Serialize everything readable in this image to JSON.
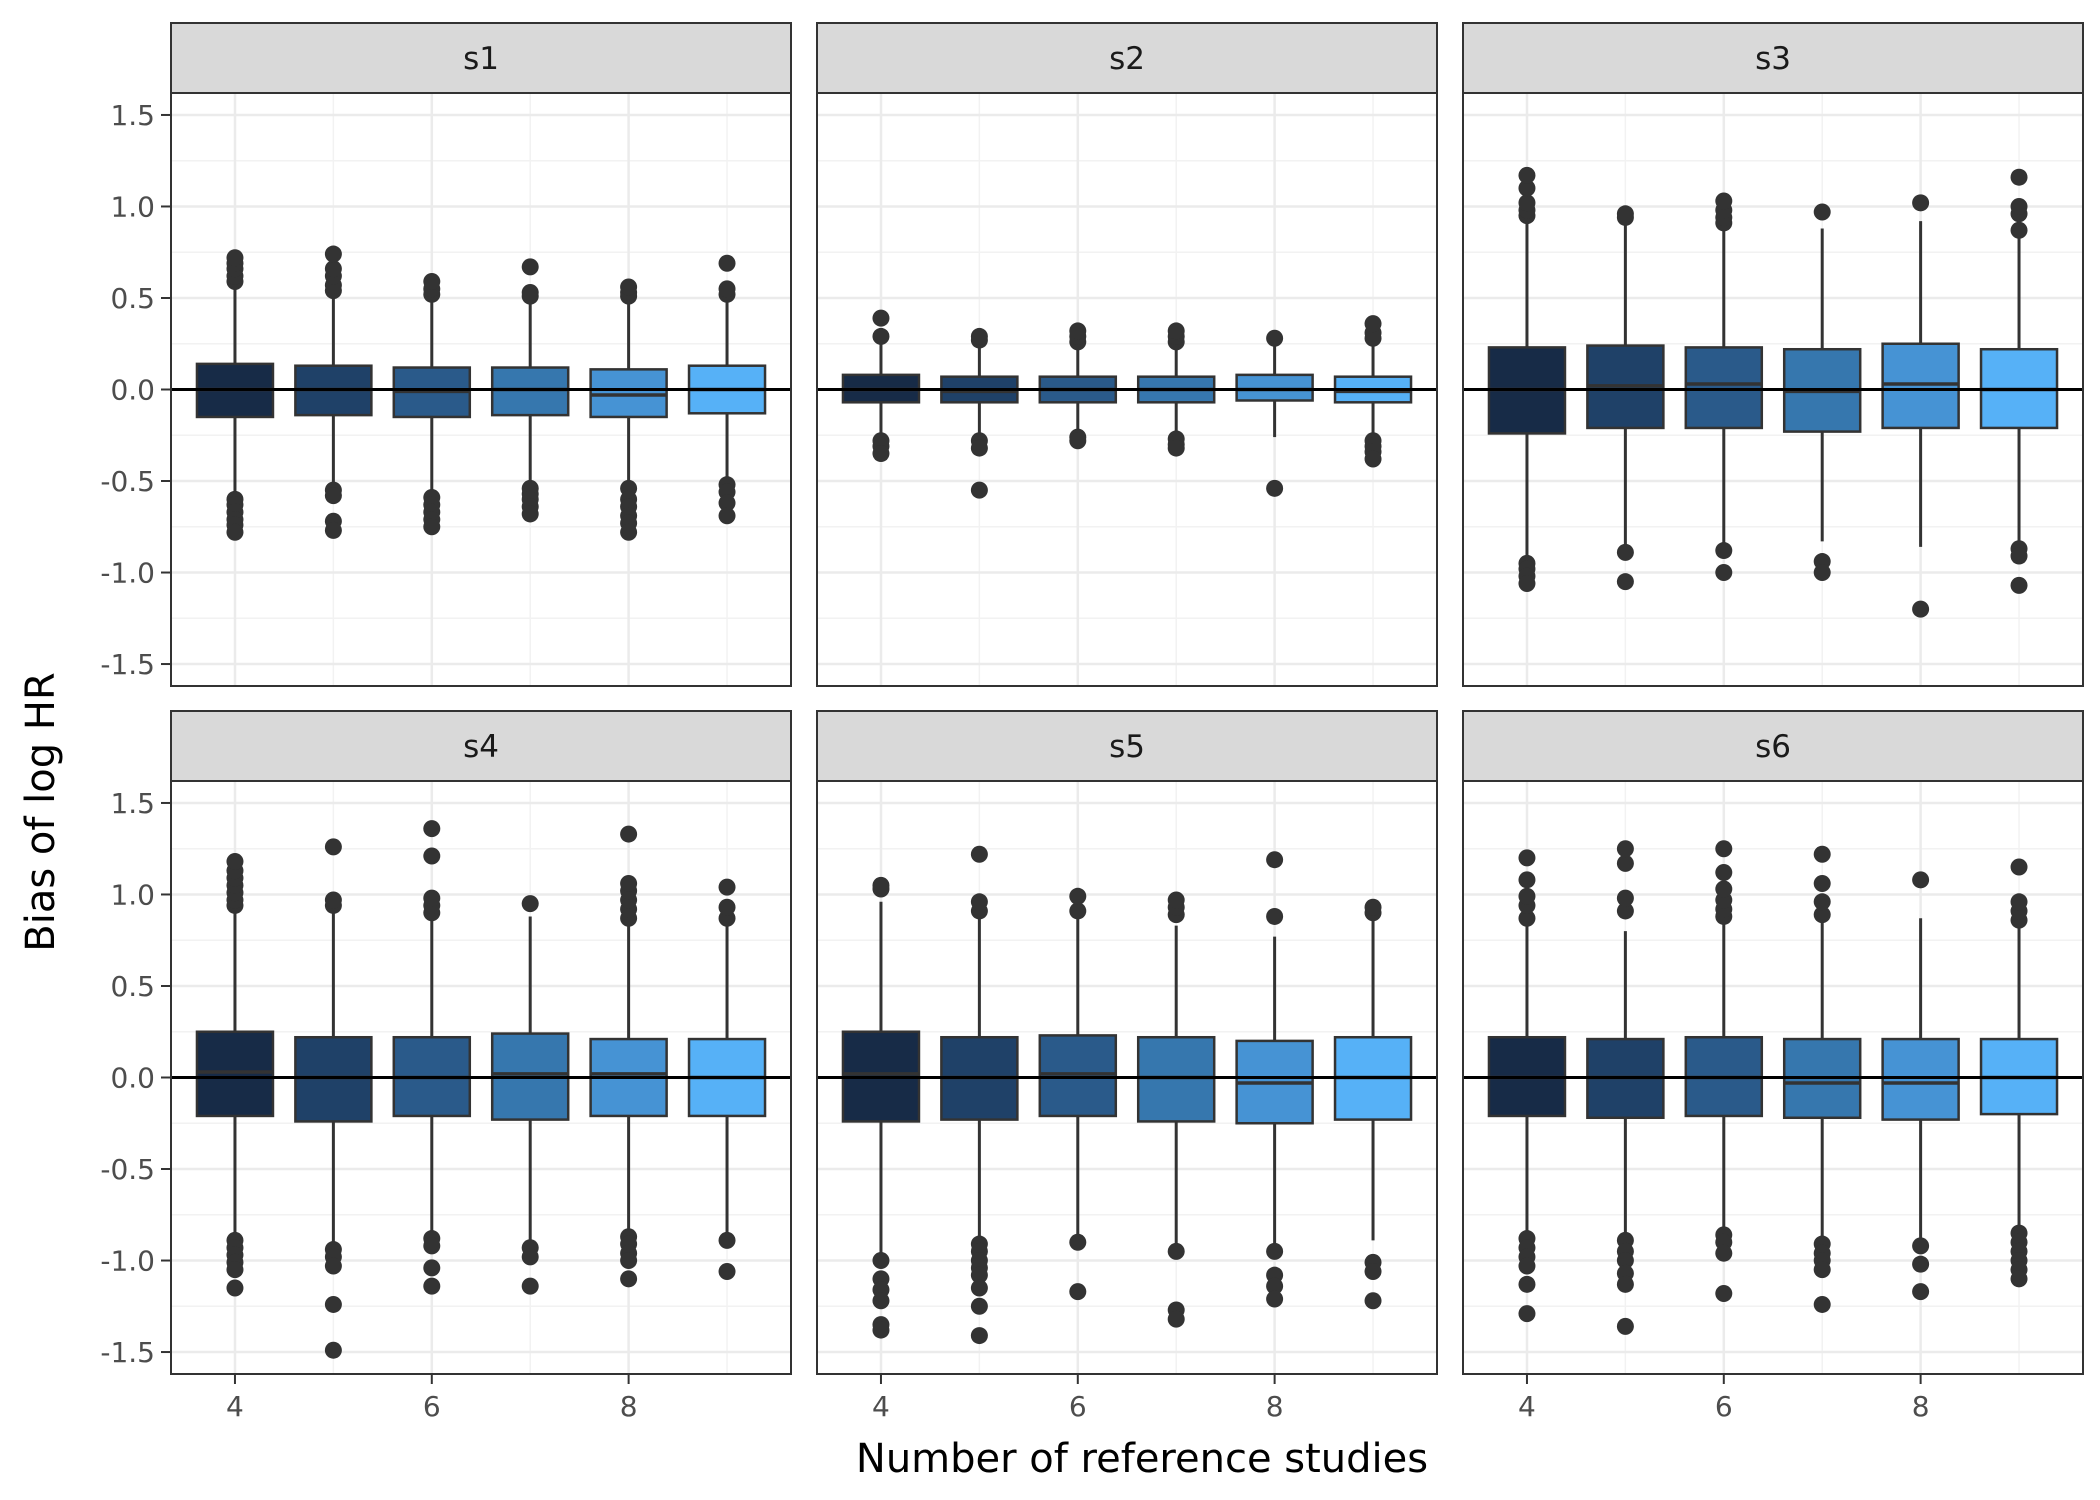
{
  "chart_data": {
    "type": "boxplot",
    "ylabel": "Bias of log HR",
    "xlabel": "Number of reference studies",
    "ylim": [
      -1.62,
      1.62
    ],
    "xlim": [
      3.35,
      9.65
    ],
    "yticks": [
      -1.5,
      -1.0,
      -0.5,
      0.0,
      0.5,
      1.0,
      1.5
    ],
    "ytick_labels": [
      "-1.5",
      "-1.0",
      "-0.5",
      "0.0",
      "0.5",
      "1.0",
      "1.5"
    ],
    "xticks": [
      4,
      6,
      8
    ],
    "xtick_labels": [
      "4",
      "6",
      "8"
    ],
    "hline": 0,
    "grid": true,
    "fill_colors": [
      "#172b47",
      "#1f4168",
      "#2a5a8a",
      "#3677ae",
      "#4693d4",
      "#56b1f7"
    ],
    "facets": [
      {
        "name": "s1",
        "boxes": [
          {
            "x": 4,
            "q1": -0.15,
            "median": 0.0,
            "q3": 0.14,
            "whisker_low": -0.57,
            "whisker_high": 0.57,
            "outliers": [
              0.59,
              0.62,
              0.66,
              0.69,
              0.72,
              -0.6,
              -0.63,
              -0.67,
              -0.71,
              -0.74,
              -0.78
            ]
          },
          {
            "x": 5,
            "q1": -0.14,
            "median": 0.0,
            "q3": 0.13,
            "whisker_low": -0.53,
            "whisker_high": 0.52,
            "outliers": [
              0.54,
              0.57,
              0.62,
              0.66,
              0.74,
              -0.55,
              -0.58,
              -0.72,
              -0.77
            ]
          },
          {
            "x": 6,
            "q1": -0.15,
            "median": -0.01,
            "q3": 0.12,
            "whisker_low": -0.56,
            "whisker_high": 0.5,
            "outliers": [
              0.52,
              0.55,
              0.59,
              -0.59,
              -0.63,
              -0.67,
              -0.71,
              -0.75
            ]
          },
          {
            "x": 7,
            "q1": -0.14,
            "median": 0.0,
            "q3": 0.12,
            "whisker_low": -0.52,
            "whisker_high": 0.5,
            "outliers": [
              0.51,
              0.53,
              0.67,
              -0.54,
              -0.57,
              -0.6,
              -0.64,
              -0.68
            ]
          },
          {
            "x": 8,
            "q1": -0.15,
            "median": -0.03,
            "q3": 0.11,
            "whisker_low": -0.52,
            "whisker_high": 0.5,
            "outliers": [
              0.51,
              0.53,
              0.56,
              -0.54,
              -0.6,
              -0.64,
              -0.69,
              -0.73,
              -0.78
            ]
          },
          {
            "x": 9,
            "q1": -0.13,
            "median": 0.0,
            "q3": 0.13,
            "whisker_low": -0.5,
            "whisker_high": 0.5,
            "outliers": [
              0.52,
              0.55,
              0.69,
              -0.52,
              -0.56,
              -0.62,
              -0.69
            ]
          }
        ]
      },
      {
        "name": "s2",
        "boxes": [
          {
            "x": 4,
            "q1": -0.07,
            "median": 0.0,
            "q3": 0.08,
            "whisker_low": -0.27,
            "whisker_high": 0.27,
            "outliers": [
              0.29,
              0.39,
              -0.28,
              -0.31,
              -0.35
            ]
          },
          {
            "x": 5,
            "q1": -0.07,
            "median": -0.01,
            "q3": 0.07,
            "whisker_low": -0.26,
            "whisker_high": 0.26,
            "outliers": [
              0.27,
              0.29,
              -0.28,
              -0.32,
              -0.55
            ]
          },
          {
            "x": 6,
            "q1": -0.07,
            "median": 0.0,
            "q3": 0.07,
            "whisker_low": -0.25,
            "whisker_high": 0.25,
            "outliers": [
              0.26,
              0.29,
              0.32,
              -0.26,
              -0.28
            ]
          },
          {
            "x": 7,
            "q1": -0.07,
            "median": 0.0,
            "q3": 0.07,
            "whisker_low": -0.25,
            "whisker_high": 0.25,
            "outliers": [
              0.26,
              0.29,
              0.32,
              -0.27,
              -0.3,
              -0.32
            ]
          },
          {
            "x": 8,
            "q1": -0.06,
            "median": 0.0,
            "q3": 0.08,
            "whisker_low": -0.26,
            "whisker_high": 0.26,
            "outliers": [
              0.28,
              -0.54
            ]
          },
          {
            "x": 9,
            "q1": -0.07,
            "median": -0.01,
            "q3": 0.07,
            "whisker_low": -0.26,
            "whisker_high": 0.26,
            "outliers": [
              0.28,
              0.31,
              0.36,
              -0.28,
              -0.31,
              -0.34,
              -0.38
            ]
          }
        ]
      },
      {
        "name": "s3",
        "boxes": [
          {
            "x": 4,
            "q1": -0.24,
            "median": 0.0,
            "q3": 0.23,
            "whisker_low": -0.92,
            "whisker_high": 0.92,
            "outliers": [
              0.95,
              0.98,
              1.02,
              1.1,
              1.17,
              -0.95,
              -0.98,
              -1.02,
              -1.06
            ]
          },
          {
            "x": 5,
            "q1": -0.21,
            "median": 0.02,
            "q3": 0.24,
            "whisker_low": -0.87,
            "whisker_high": 0.92,
            "outliers": [
              0.94,
              0.96,
              -0.89,
              -1.05
            ]
          },
          {
            "x": 6,
            "q1": -0.21,
            "median": 0.03,
            "q3": 0.23,
            "whisker_low": -0.87,
            "whisker_high": 0.9,
            "outliers": [
              0.91,
              0.94,
              0.98,
              1.03,
              -0.88,
              -1.0
            ]
          },
          {
            "x": 7,
            "q1": -0.23,
            "median": -0.01,
            "q3": 0.22,
            "whisker_low": -0.83,
            "whisker_high": 0.88,
            "outliers": [
              0.97,
              -0.94,
              -1.0
            ]
          },
          {
            "x": 8,
            "q1": -0.21,
            "median": 0.03,
            "q3": 0.25,
            "whisker_low": -0.86,
            "whisker_high": 0.92,
            "outliers": [
              1.02,
              -1.2
            ]
          },
          {
            "x": 9,
            "q1": -0.21,
            "median": 0.0,
            "q3": 0.22,
            "whisker_low": -0.85,
            "whisker_high": 0.86,
            "outliers": [
              0.87,
              0.96,
              1.0,
              1.16,
              -0.87,
              -0.91,
              -1.07
            ]
          }
        ]
      },
      {
        "name": "s4",
        "boxes": [
          {
            "x": 4,
            "q1": -0.21,
            "median": 0.03,
            "q3": 0.25,
            "whisker_low": -0.88,
            "whisker_high": 0.92,
            "outliers": [
              0.94,
              0.97,
              1.01,
              1.05,
              1.09,
              1.13,
              1.18,
              -0.89,
              -0.93,
              -0.97,
              -1.01,
              -1.05,
              -1.15
            ]
          },
          {
            "x": 5,
            "q1": -0.24,
            "median": 0.0,
            "q3": 0.22,
            "whisker_low": -0.92,
            "whisker_high": 0.92,
            "outliers": [
              0.94,
              0.97,
              1.26,
              -0.94,
              -0.98,
              -1.03,
              -1.24,
              -1.49
            ]
          },
          {
            "x": 6,
            "q1": -0.21,
            "median": 0.0,
            "q3": 0.22,
            "whisker_low": -0.86,
            "whisker_high": 0.88,
            "outliers": [
              0.9,
              0.94,
              0.98,
              1.21,
              1.36,
              -0.88,
              -0.92,
              -1.04,
              -1.14
            ]
          },
          {
            "x": 7,
            "q1": -0.23,
            "median": 0.02,
            "q3": 0.24,
            "whisker_low": -0.92,
            "whisker_high": 0.88,
            "outliers": [
              0.95,
              -0.93,
              -0.98,
              -1.14
            ]
          },
          {
            "x": 8,
            "q1": -0.21,
            "median": 0.02,
            "q3": 0.21,
            "whisker_low": -0.85,
            "whisker_high": 0.85,
            "outliers": [
              0.87,
              0.92,
              0.97,
              1.02,
              1.06,
              1.33,
              -0.87,
              -0.91,
              -0.96,
              -1.0,
              -1.1
            ]
          },
          {
            "x": 9,
            "q1": -0.21,
            "median": 0.0,
            "q3": 0.21,
            "whisker_low": -0.89,
            "whisker_high": 0.85,
            "outliers": [
              0.87,
              0.93,
              1.04,
              -0.89,
              -1.06
            ]
          }
        ]
      },
      {
        "name": "s5",
        "boxes": [
          {
            "x": 4,
            "q1": -0.24,
            "median": 0.02,
            "q3": 0.25,
            "whisker_low": -0.96,
            "whisker_high": 0.96,
            "outliers": [
              1.03,
              1.05,
              -1.0,
              -1.1,
              -1.16,
              -1.22,
              -1.35,
              -1.38
            ]
          },
          {
            "x": 5,
            "q1": -0.23,
            "median": 0.0,
            "q3": 0.22,
            "whisker_low": -0.89,
            "whisker_high": 0.88,
            "outliers": [
              0.91,
              0.96,
              1.22,
              -0.91,
              -0.95,
              -1.0,
              -1.04,
              -1.08,
              -1.15,
              -1.25,
              -1.41
            ]
          },
          {
            "x": 6,
            "q1": -0.21,
            "median": 0.02,
            "q3": 0.23,
            "whisker_low": -0.88,
            "whisker_high": 0.88,
            "outliers": [
              0.91,
              0.99,
              -0.9,
              -1.17
            ]
          },
          {
            "x": 7,
            "q1": -0.24,
            "median": 0.0,
            "q3": 0.22,
            "whisker_low": -0.92,
            "whisker_high": 0.83,
            "outliers": [
              0.89,
              0.93,
              0.97,
              -0.95,
              -1.27,
              -1.32
            ]
          },
          {
            "x": 8,
            "q1": -0.25,
            "median": -0.03,
            "q3": 0.2,
            "whisker_low": -0.92,
            "whisker_high": 0.77,
            "outliers": [
              0.88,
              1.19,
              -0.95,
              -1.08,
              -1.14,
              -1.21
            ]
          },
          {
            "x": 9,
            "q1": -0.23,
            "median": 0.0,
            "q3": 0.22,
            "whisker_low": -0.89,
            "whisker_high": 0.88,
            "outliers": [
              0.9,
              0.93,
              -1.01,
              -1.06,
              -1.22
            ]
          }
        ]
      },
      {
        "name": "s6",
        "boxes": [
          {
            "x": 4,
            "q1": -0.21,
            "median": 0.0,
            "q3": 0.22,
            "whisker_low": -0.86,
            "whisker_high": 0.86,
            "outliers": [
              0.87,
              0.94,
              0.99,
              1.08,
              1.2,
              -0.88,
              -0.93,
              -0.98,
              -1.03,
              -1.13,
              -1.29
            ]
          },
          {
            "x": 5,
            "q1": -0.22,
            "median": 0.0,
            "q3": 0.21,
            "whisker_low": -0.87,
            "whisker_high": 0.8,
            "outliers": [
              0.91,
              0.98,
              1.17,
              1.25,
              -0.89,
              -0.95,
              -1.0,
              -1.07,
              -1.13,
              -1.36
            ]
          },
          {
            "x": 6,
            "q1": -0.21,
            "median": 0.0,
            "q3": 0.22,
            "whisker_low": -0.85,
            "whisker_high": 0.86,
            "outliers": [
              0.88,
              0.92,
              0.97,
              1.03,
              1.12,
              1.25,
              -0.86,
              -0.9,
              -0.96,
              -1.18
            ]
          },
          {
            "x": 7,
            "q1": -0.22,
            "median": -0.03,
            "q3": 0.21,
            "whisker_low": -0.89,
            "whisker_high": 0.86,
            "outliers": [
              0.89,
              0.96,
              1.06,
              1.22,
              -0.91,
              -0.96,
              -1.0,
              -1.05,
              -1.24
            ]
          },
          {
            "x": 8,
            "q1": -0.23,
            "median": -0.03,
            "q3": 0.21,
            "whisker_low": -0.88,
            "whisker_high": 0.87,
            "outliers": [
              1.08,
              -0.92,
              -1.02,
              -1.17
            ]
          },
          {
            "x": 9,
            "q1": -0.2,
            "median": 0.0,
            "q3": 0.21,
            "whisker_low": -0.83,
            "whisker_high": 0.82,
            "outliers": [
              0.86,
              0.91,
              0.96,
              1.15,
              -0.85,
              -0.9,
              -0.95,
              -1.0,
              -1.05,
              -1.1
            ]
          }
        ]
      }
    ]
  }
}
